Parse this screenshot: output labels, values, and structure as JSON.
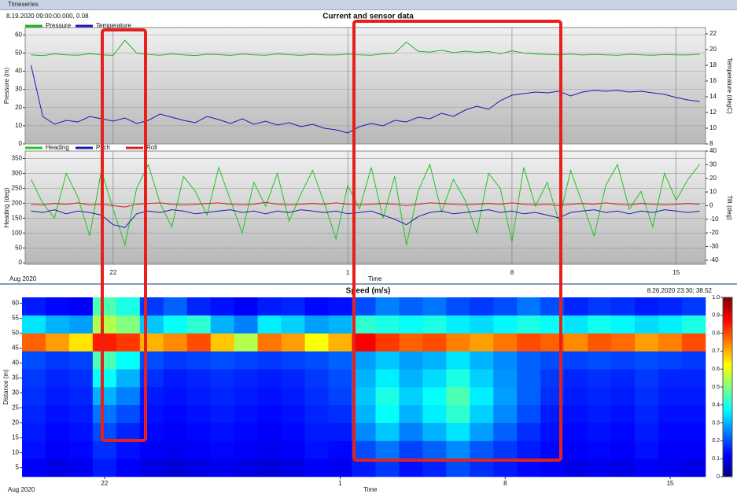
{
  "window_title": "Timeseries",
  "chart_data": [
    {
      "type": "line",
      "title": "Current and sensor data",
      "annotation": "8.19.2020 09:00:00.000, 0.08",
      "ylabel": "Pressure (m)",
      "y2label": "Temperature (degC)",
      "ylim": [
        0,
        64
      ],
      "yticks": [
        0,
        10,
        20,
        30,
        40,
        50,
        60
      ],
      "y2lim": [
        8,
        22.8
      ],
      "y2ticks": [
        8,
        10,
        12,
        14,
        16,
        18,
        20,
        22
      ],
      "legend": "top-left",
      "grid": true,
      "series": [
        {
          "name": "Pressure",
          "color": "#22b422",
          "values": [
            49,
            48.5,
            49.5,
            49,
            48.8,
            49.6,
            49,
            48.7,
            57,
            50,
            49.2,
            48.8,
            49.5,
            49,
            48.6,
            49.3,
            49.1,
            48.7,
            49.4,
            49,
            48.8,
            49.5,
            49.1,
            48.7,
            49.3,
            49,
            48.9,
            49.4,
            49,
            48.8,
            49.5,
            50,
            56,
            51,
            50.5,
            51.5,
            50.2,
            51,
            50.4,
            50.8,
            49.6,
            51.2,
            50,
            49.5,
            49.2,
            49,
            49.4,
            48.9,
            49.2,
            49,
            48.8,
            49.3,
            49,
            48.8,
            49.2,
            49,
            48.9,
            49.3
          ]
        },
        {
          "name": "Temperature",
          "color": "#1a1ab4",
          "axis": "y2",
          "values": [
            18,
            11.5,
            10.5,
            11,
            10.8,
            11.5,
            11.2,
            10.9,
            11.3,
            10.6,
            11,
            11.8,
            11.4,
            11,
            10.7,
            11.5,
            11.1,
            10.6,
            11.2,
            10.5,
            10.9,
            10.4,
            10.7,
            10.2,
            10.5,
            10,
            9.8,
            9.4,
            10.2,
            10.6,
            10.3,
            11,
            10.8,
            11.4,
            11.2,
            11.9,
            11.5,
            12.3,
            12.8,
            12.4,
            13.5,
            14.2,
            14.4,
            14.6,
            14.5,
            14.7,
            14.1,
            14.6,
            14.8,
            14.7,
            14.8,
            14.6,
            14.7,
            14.5,
            14.3,
            13.9,
            13.6,
            13.4
          ]
        }
      ]
    },
    {
      "type": "line",
      "ylabel": "Heading (deg)",
      "y2label": "Tilt (deg)",
      "xlabel": "Time",
      "x_period": "Aug 2020",
      "categories": [
        null,
        null,
        null,
        null,
        null,
        null,
        null,
        "22",
        null,
        null,
        null,
        null,
        null,
        null,
        null,
        null,
        null,
        null,
        null,
        null,
        null,
        null,
        null,
        null,
        null,
        null,
        null,
        "1",
        null,
        null,
        null,
        null,
        null,
        null,
        null,
        null,
        null,
        null,
        null,
        null,
        null,
        "8",
        null,
        null,
        null,
        null,
        null,
        null,
        null,
        null,
        null,
        null,
        null,
        null,
        null,
        "15",
        null,
        null
      ],
      "ylim": [
        -5,
        375
      ],
      "yticks": [
        0,
        50,
        100,
        150,
        200,
        250,
        300,
        350
      ],
      "y2lim": [
        -43,
        40
      ],
      "y2ticks": [
        -40,
        -30,
        -20,
        -10,
        0,
        10,
        20,
        30,
        40
      ],
      "legend": "top-left",
      "grid": true,
      "series": [
        {
          "name": "Heading",
          "color": "#22c422",
          "values": [
            280,
            200,
            150,
            300,
            220,
            90,
            310,
            180,
            60,
            250,
            330,
            200,
            120,
            290,
            240,
            160,
            320,
            210,
            100,
            270,
            190,
            300,
            140,
            230,
            310,
            200,
            80,
            260,
            180,
            320,
            150,
            290,
            60,
            240,
            330,
            170,
            280,
            210,
            100,
            300,
            250,
            70,
            320,
            190,
            270,
            140,
            310,
            200,
            90,
            260,
            330,
            180,
            240,
            120,
            300,
            210,
            280,
            330
          ]
        },
        {
          "name": "Pitch",
          "color": "#1a1ab4",
          "axis": "y2",
          "values": [
            -4,
            -5,
            -3,
            -6,
            -4,
            -5,
            -7,
            -14,
            -16,
            -6,
            -4,
            -5,
            -3,
            -4,
            -6,
            -5,
            -4,
            -3,
            -5,
            -4,
            -6,
            -4,
            -5,
            -3,
            -4,
            -5,
            -4,
            -6,
            -5,
            -4,
            -7,
            -10,
            -14,
            -8,
            -5,
            -4,
            -6,
            -5,
            -4,
            -3,
            -5,
            -4,
            -6,
            -5,
            -7,
            -9,
            -5,
            -4,
            -3,
            -5,
            -4,
            -6,
            -4,
            -5,
            -3,
            -4,
            -5,
            -4
          ]
        },
        {
          "name": "Roll",
          "color": "#d42020",
          "axis": "y2",
          "values": [
            1,
            0.5,
            1.5,
            1,
            2,
            0.5,
            1,
            0,
            -1,
            1,
            1.5,
            2,
            1,
            0.5,
            1,
            1.5,
            2,
            1,
            0.5,
            1,
            2.5,
            1,
            0.5,
            1,
            1.5,
            1,
            2,
            1,
            0.5,
            1,
            1.5,
            1,
            0,
            1,
            2,
            1.5,
            1,
            0.5,
            1,
            1.5,
            1,
            2,
            1,
            0.5,
            1,
            0,
            1,
            1.5,
            1,
            2,
            1,
            0.5,
            1.5,
            1,
            0.5,
            1,
            1.5,
            1
          ]
        }
      ]
    },
    {
      "type": "heatmap",
      "title": "Speed (m/s)",
      "annotation": "8.26.2020 23:30; 38.52",
      "xlabel": "Time",
      "x_period": "Aug 2020",
      "ylabel": "Distance (m)",
      "categories": [
        null,
        null,
        null,
        "22",
        null,
        null,
        null,
        null,
        null,
        null,
        null,
        null,
        null,
        "1",
        null,
        null,
        null,
        null,
        null,
        null,
        "8",
        null,
        null,
        null,
        null,
        null,
        null,
        "15",
        null
      ],
      "y_edges": [
        2,
        8,
        14,
        20,
        26,
        32,
        38,
        44,
        50,
        56,
        62
      ],
      "ylim": [
        2,
        62
      ],
      "yticks": [
        5,
        10,
        15,
        20,
        25,
        30,
        35,
        40,
        45,
        50,
        55,
        60
      ],
      "colormap": "jet",
      "zlim": [
        0,
        1
      ],
      "zticks": [
        0,
        0.1,
        0.2,
        0.3,
        0.4,
        0.5,
        0.6,
        0.7,
        0.8,
        0.9,
        {
          "value": 1,
          "label": "1.0"
        }
      ],
      "z": [
        [
          0.12,
          0.1,
          0.11,
          0.15,
          0.12,
          0.1,
          0.09,
          0.1,
          0.11,
          0.1,
          0.09,
          0.1,
          0.12,
          0.11,
          0.15,
          0.18,
          0.14,
          0.16,
          0.2,
          0.17,
          0.15,
          0.13,
          0.12,
          0.1,
          0.11,
          0.1,
          0.12,
          0.11,
          0.1
        ],
        [
          0.14,
          0.12,
          0.13,
          0.17,
          0.14,
          0.12,
          0.11,
          0.12,
          0.13,
          0.12,
          0.11,
          0.12,
          0.14,
          0.13,
          0.2,
          0.24,
          0.19,
          0.22,
          0.26,
          0.21,
          0.18,
          0.15,
          0.13,
          0.12,
          0.13,
          0.12,
          0.14,
          0.12,
          0.12
        ],
        [
          0.15,
          0.13,
          0.14,
          0.2,
          0.16,
          0.13,
          0.12,
          0.13,
          0.14,
          0.13,
          0.12,
          0.13,
          0.15,
          0.15,
          0.26,
          0.32,
          0.25,
          0.3,
          0.35,
          0.28,
          0.22,
          0.17,
          0.14,
          0.13,
          0.14,
          0.13,
          0.15,
          0.13,
          0.13
        ],
        [
          0.16,
          0.14,
          0.15,
          0.24,
          0.2,
          0.14,
          0.13,
          0.14,
          0.15,
          0.14,
          0.13,
          0.14,
          0.16,
          0.17,
          0.3,
          0.38,
          0.3,
          0.36,
          0.42,
          0.33,
          0.26,
          0.2,
          0.15,
          0.14,
          0.15,
          0.14,
          0.16,
          0.14,
          0.14
        ],
        [
          0.17,
          0.15,
          0.16,
          0.3,
          0.25,
          0.15,
          0.14,
          0.15,
          0.16,
          0.15,
          0.14,
          0.15,
          0.17,
          0.19,
          0.32,
          0.4,
          0.33,
          0.38,
          0.45,
          0.36,
          0.28,
          0.22,
          0.17,
          0.15,
          0.16,
          0.15,
          0.17,
          0.15,
          0.15
        ],
        [
          0.18,
          0.16,
          0.17,
          0.38,
          0.3,
          0.17,
          0.15,
          0.16,
          0.17,
          0.16,
          0.15,
          0.16,
          0.18,
          0.2,
          0.3,
          0.36,
          0.3,
          0.34,
          0.4,
          0.33,
          0.27,
          0.22,
          0.18,
          0.16,
          0.17,
          0.16,
          0.18,
          0.16,
          0.16
        ],
        [
          0.2,
          0.18,
          0.19,
          0.45,
          0.38,
          0.2,
          0.18,
          0.19,
          0.2,
          0.19,
          0.18,
          0.19,
          0.2,
          0.22,
          0.28,
          0.32,
          0.28,
          0.3,
          0.35,
          0.3,
          0.26,
          0.22,
          0.2,
          0.19,
          0.2,
          0.19,
          0.2,
          0.19,
          0.18
        ],
        [
          0.78,
          0.72,
          0.65,
          0.85,
          0.82,
          0.7,
          0.74,
          0.8,
          0.68,
          0.55,
          0.76,
          0.72,
          0.62,
          0.7,
          0.88,
          0.82,
          0.78,
          0.8,
          0.75,
          0.72,
          0.76,
          0.8,
          0.78,
          0.74,
          0.79,
          0.77,
          0.72,
          0.75,
          0.8
        ],
        [
          0.35,
          0.3,
          0.28,
          0.55,
          0.5,
          0.32,
          0.38,
          0.42,
          0.3,
          0.25,
          0.36,
          0.33,
          0.28,
          0.3,
          0.42,
          0.4,
          0.38,
          0.4,
          0.36,
          0.34,
          0.37,
          0.4,
          0.38,
          0.35,
          0.39,
          0.37,
          0.34,
          0.36,
          0.4
        ],
        [
          0.15,
          0.13,
          0.12,
          0.45,
          0.4,
          0.18,
          0.22,
          0.16,
          0.14,
          0.12,
          0.15,
          0.16,
          0.13,
          0.14,
          0.2,
          0.25,
          0.22,
          0.24,
          0.2,
          0.18,
          0.2,
          0.24,
          0.2,
          0.16,
          0.18,
          0.17,
          0.15,
          0.16,
          0.18
        ]
      ]
    }
  ]
}
